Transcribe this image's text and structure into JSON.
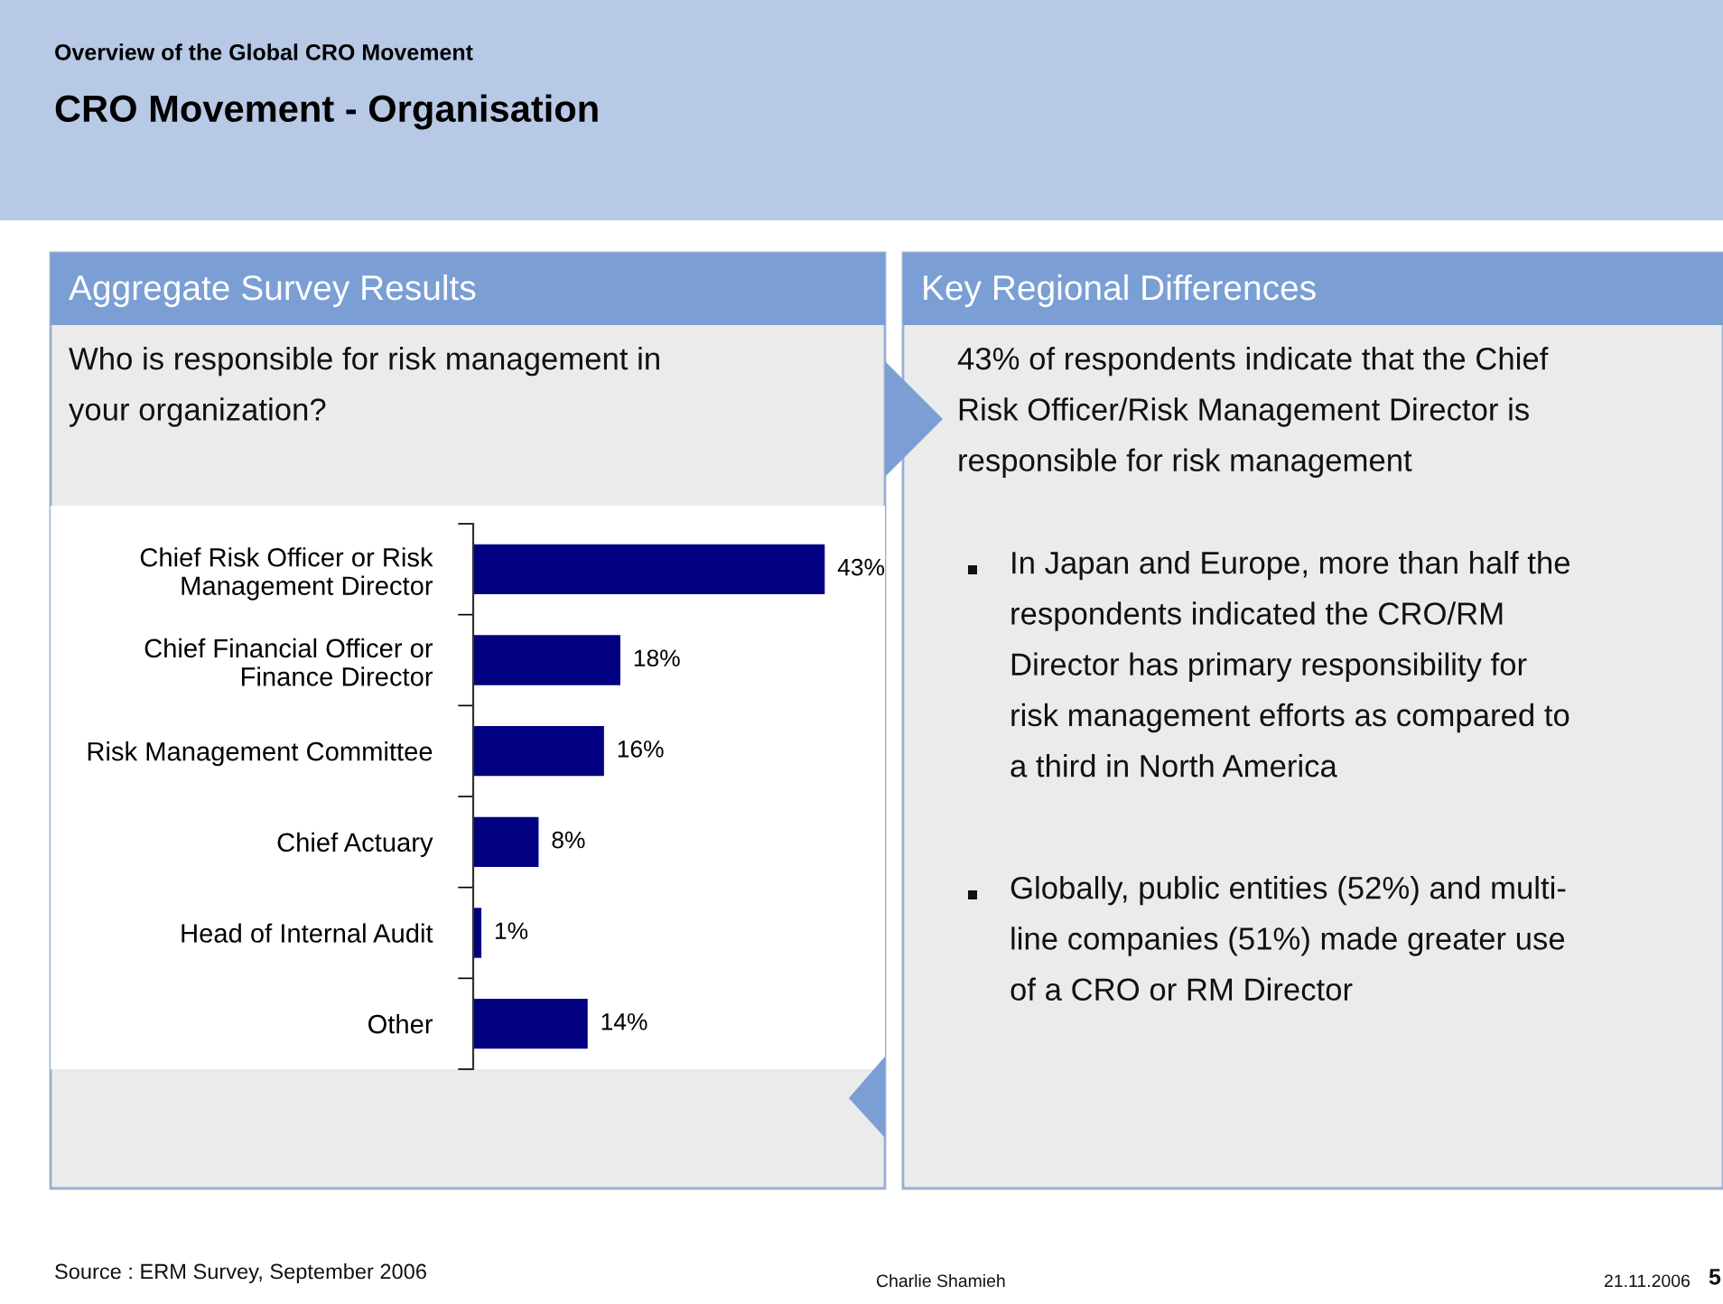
{
  "chart_data": {
    "type": "bar",
    "orientation": "horizontal",
    "title": "CRO Movement - Organisation",
    "subtitle": "Overview of the Global CRO Movement",
    "categories": [
      "Chief Risk Officer or Risk\nManagement Director",
      "Chief Financial Officer or\nFinance Director",
      "Risk Management Committee",
      "Chief Actuary",
      "Head of Internal Audit",
      "Other"
    ],
    "values": [
      43,
      18,
      16,
      8,
      1,
      14
    ],
    "value_labels": [
      "43%",
      "18%",
      "16%",
      "8%",
      "1%",
      "14%"
    ],
    "color": "#000080",
    "grid": false,
    "tick_labels": "y",
    "annotations": [
      "Aggregate Survey Results",
      "Who is responsible for risk management in\nyour organization?",
      "Key Regional Differences",
      "43% of respondents indicate that the Chief\nRisk Officer/Risk Management Director is\nresponsible for risk management",
      "In Japan and Europe, more than half the\nrespondents indicated the CRO/RM\nDirector has primary responsibility for\nrisk management efforts as compared to\na third in North America",
      "Globally, public entities (52%) and multi-\nline companies (51%) made greater use\nof a CRO or RM Director",
      "Source : ERM Survey, September 2006",
      "Charlie Shamieh",
      "21.11.2006",
      "5"
    ]
  }
}
